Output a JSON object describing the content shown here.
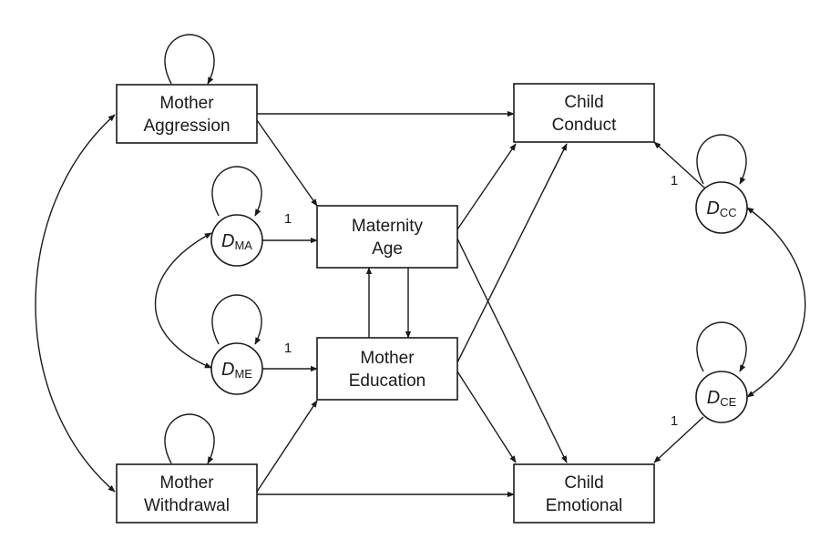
{
  "nodes": {
    "mother_aggression": {
      "line1": "Mother",
      "line2": "Aggression"
    },
    "mother_withdrawal": {
      "line1": "Mother",
      "line2": "Withdrawal"
    },
    "maternity_age": {
      "line1": "Maternity",
      "line2": "Age"
    },
    "mother_education": {
      "line1": "Mother",
      "line2": "Education"
    },
    "child_conduct": {
      "line1": "Child",
      "line2": "Conduct"
    },
    "child_emotional": {
      "line1": "Child",
      "line2": "Emotional"
    }
  },
  "disturbances": {
    "d_ma": {
      "main": "D",
      "sub": "MA"
    },
    "d_me": {
      "main": "D",
      "sub": "ME"
    },
    "d_cc": {
      "main": "D",
      "sub": "CC"
    },
    "d_ce": {
      "main": "D",
      "sub": "CE"
    }
  },
  "weights": {
    "d_ma_to_maternity_age": "1",
    "d_me_to_mother_education": "1",
    "d_cc_to_child_conduct": "1",
    "d_ce_to_child_emotional": "1"
  }
}
